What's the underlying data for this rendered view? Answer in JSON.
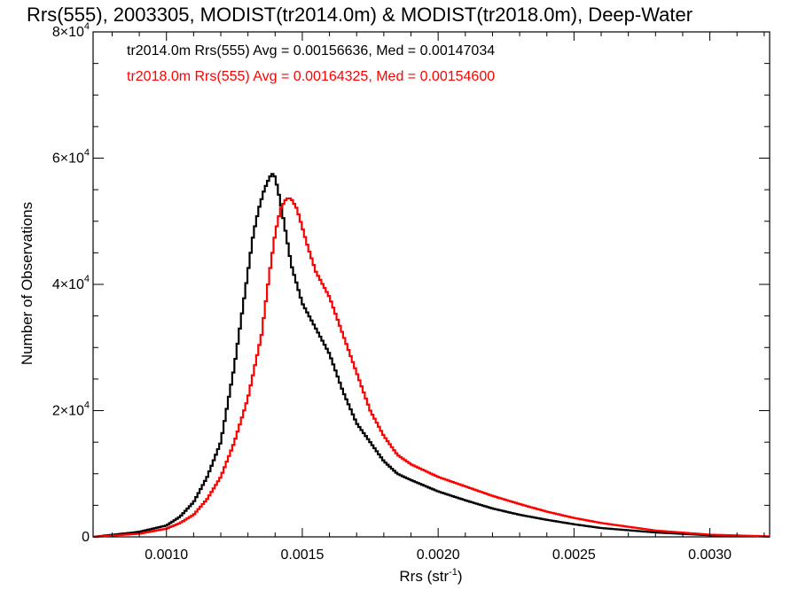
{
  "chart_data": {
    "type": "line",
    "title": "Rrs(555), 2003305, MODIST(tr2014.0m) & MODIST(tr2018.0m), Deep-Water",
    "xlabel_base": "Rrs (str",
    "xlabel_sup": "-1",
    "xlabel_close": ")",
    "ylabel": "Number of Observations",
    "xlim": [
      0.00073,
      0.00322
    ],
    "ylim": [
      0,
      80000
    ],
    "x_ticks": [
      {
        "value": 0.001,
        "label": "0.0010"
      },
      {
        "value": 0.0015,
        "label": "0.0015"
      },
      {
        "value": 0.002,
        "label": "0.0020"
      },
      {
        "value": 0.0025,
        "label": "0.0025"
      },
      {
        "value": 0.003,
        "label": "0.0030"
      }
    ],
    "y_ticks": [
      {
        "value": 0,
        "label": "0",
        "sup": ""
      },
      {
        "value": 20000,
        "label": "2×10",
        "sup": "4"
      },
      {
        "value": 40000,
        "label": "4×10",
        "sup": "4"
      },
      {
        "value": 60000,
        "label": "6×10",
        "sup": "4"
      },
      {
        "value": 80000,
        "label": "8×10",
        "sup": "4"
      }
    ],
    "series": [
      {
        "name": "tr2014.0m Rrs(555) Avg = 0.00156636, Med = 0.00147034",
        "color": "#000000",
        "x": [
          0.00073,
          0.0009,
          0.001,
          0.00105,
          0.0011,
          0.00115,
          0.0012,
          0.00125,
          0.00128,
          0.0013,
          0.00132,
          0.00134,
          0.00136,
          0.00138,
          0.00139,
          0.0014,
          0.00142,
          0.00144,
          0.00146,
          0.00148,
          0.0015,
          0.00155,
          0.0016,
          0.00165,
          0.0017,
          0.00175,
          0.0018,
          0.00185,
          0.0019,
          0.002,
          0.0021,
          0.0022,
          0.0023,
          0.0024,
          0.0025,
          0.0026,
          0.0028,
          0.003,
          0.00322
        ],
        "y": [
          0,
          800,
          1800,
          3200,
          5500,
          9500,
          15000,
          27000,
          36000,
          42000,
          48000,
          52000,
          55000,
          57000,
          57500,
          57000,
          53000,
          48000,
          43000,
          40000,
          37000,
          33000,
          29000,
          23000,
          18000,
          15000,
          12000,
          10000,
          9000,
          7200,
          5800,
          4500,
          3500,
          2700,
          2000,
          1400,
          700,
          250,
          50
        ]
      },
      {
        "name": "tr2018.0m Rrs(555) Avg = 0.00164325, Med = 0.00154600",
        "color": "#ff0000",
        "x": [
          0.00073,
          0.0009,
          0.001,
          0.00105,
          0.0011,
          0.00115,
          0.0012,
          0.00125,
          0.0013,
          0.00135,
          0.00138,
          0.0014,
          0.00142,
          0.00144,
          0.00145,
          0.00146,
          0.00148,
          0.0015,
          0.00152,
          0.00155,
          0.0016,
          0.00165,
          0.0017,
          0.00175,
          0.0018,
          0.00185,
          0.0019,
          0.002,
          0.0021,
          0.0022,
          0.0023,
          0.0024,
          0.0025,
          0.0026,
          0.0028,
          0.003,
          0.00322
        ],
        "y": [
          0,
          500,
          1300,
          2200,
          3500,
          6000,
          9500,
          15000,
          22000,
          32000,
          42000,
          48000,
          52000,
          53500,
          53700,
          53500,
          52000,
          49000,
          46000,
          42000,
          38000,
          32000,
          26000,
          20000,
          16000,
          13000,
          11500,
          9500,
          8000,
          6500,
          5200,
          4000,
          3000,
          2200,
          1000,
          350,
          80
        ]
      }
    ],
    "grid": false,
    "legend": "top-left"
  }
}
